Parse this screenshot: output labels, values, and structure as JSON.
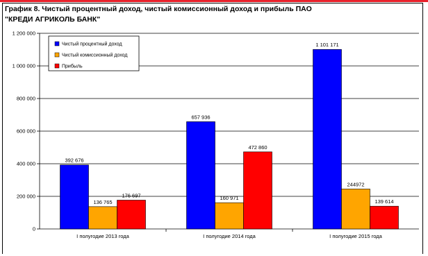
{
  "chart_data": {
    "type": "bar",
    "title": "График 8. Чистый процентный доход, чистый комиссионный доход и прибыль ПАО \"КРЕДИ АГРИКОЛЬ БАНК\"",
    "xlabel": "",
    "ylabel": "",
    "categories": [
      "I полугодие 2013 года",
      "I полугодие 2014 года",
      "I полугодие 2015 года"
    ],
    "series": [
      {
        "name": "Чистый процентный доход",
        "color": "#0000ff",
        "values": [
          392676,
          657936,
          1101171
        ],
        "labels": [
          "392 676",
          "657 936",
          "1 101 171"
        ]
      },
      {
        "name": "Чистый комиссионный доход",
        "color": "#ffa500",
        "values": [
          136765,
          160971,
          244972
        ],
        "labels": [
          "136 765",
          "160 971",
          "244972"
        ]
      },
      {
        "name": "Прибыль",
        "color": "#ff0000",
        "values": [
          176697,
          472860,
          139614
        ],
        "labels": [
          "176 697",
          "472 860",
          "139 614"
        ]
      }
    ],
    "ylim": [
      0,
      1200000
    ],
    "yticks": [
      0,
      200000,
      400000,
      600000,
      800000,
      1000000,
      1200000
    ],
    "ytick_labels": [
      "0",
      "200 000",
      "400 000",
      "600 000",
      "800 000",
      "1 000 000",
      "1 200 000"
    ],
    "grid": true,
    "legend": "top-left"
  }
}
